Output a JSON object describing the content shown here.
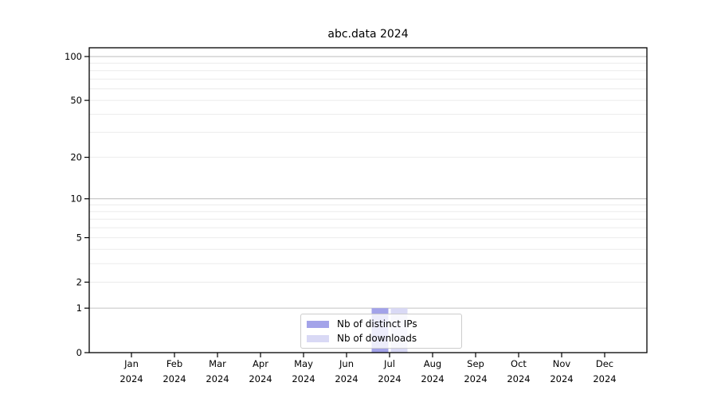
{
  "chart_data": {
    "type": "bar",
    "title": "abc.data 2024",
    "categories": [
      "Jan",
      "Feb",
      "Mar",
      "Apr",
      "May",
      "Jun",
      "Jul",
      "Aug",
      "Sep",
      "Oct",
      "Nov",
      "Dec"
    ],
    "category_year": "2024",
    "series": [
      {
        "name": "Nb of distinct IPs",
        "color": "#a3a3e9",
        "values": [
          0,
          0,
          0,
          0,
          0,
          0,
          1,
          0,
          0,
          0,
          0,
          0
        ]
      },
      {
        "name": "Nb of downloads",
        "color": "#d9d9f5",
        "values": [
          0,
          0,
          0,
          0,
          0,
          0,
          1,
          0,
          0,
          0,
          0,
          0
        ]
      }
    ],
    "y_ticks": [
      0,
      1,
      2,
      5,
      10,
      20,
      50,
      100
    ],
    "y_tick_labels": [
      "0",
      "1",
      "2",
      "5",
      "10",
      "20",
      "50",
      "100"
    ],
    "y_scale": "log1p",
    "ylim": [
      0,
      115
    ],
    "grid": true,
    "legend_position": "lower center inside plot",
    "colors": {
      "background": "#ffffff",
      "axis": "#000000",
      "major_grid": "#c3c3c3",
      "minor_grid": "#ebebeb",
      "legend_border": "#cccccc",
      "legend_background": "rgba(255,255,255,0.8)",
      "text": "#000000"
    }
  }
}
